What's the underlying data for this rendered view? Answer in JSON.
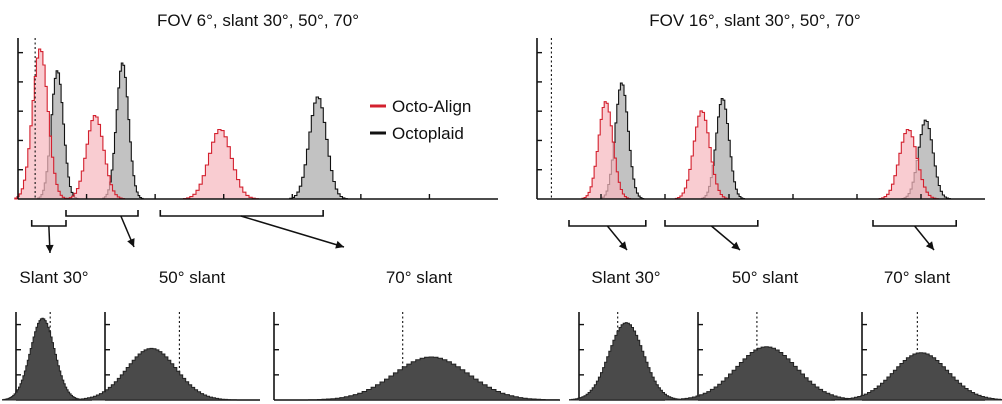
{
  "colors": {
    "red": "#d3202e",
    "red_fill": "#f6b8bf",
    "gray_fill": "#c2c2c2",
    "dark_fill": "#4a4a4a",
    "axis": "#111111"
  },
  "legend": [
    {
      "name": "Octo-Align",
      "color": "#d3202e"
    },
    {
      "name": "Octoplaid",
      "color": "#111111"
    }
  ],
  "panels": {
    "left": {
      "title": "FOV 6°, slant 30°, 50°, 70°"
    },
    "right": {
      "title": "FOV 16°, slant 30°, 50°, 70°"
    }
  },
  "labels": {
    "left": [
      "Slant 30°",
      "50° slant",
      "70° slant"
    ],
    "right": [
      "Slant 30°",
      "50° slant",
      "70° slant"
    ]
  },
  "chart_data": [
    {
      "type": "area",
      "title": "FOV 6°, slant 30°, 50°, 70°",
      "legend_position": "top-right",
      "series": [
        {
          "name": "Octo-Align",
          "distributions": [
            {
              "mean": 1.3,
              "sd": 0.45,
              "height": 0.97
            },
            {
              "mean": 4.5,
              "sd": 0.5,
              "height": 0.54
            },
            {
              "mean": 11.8,
              "sd": 0.65,
              "height": 0.45
            }
          ]
        },
        {
          "name": "Octoplaid",
          "distributions": [
            {
              "mean": 2.3,
              "sd": 0.35,
              "height": 0.83
            },
            {
              "mean": 6.1,
              "sd": 0.35,
              "height": 0.88
            },
            {
              "mean": 17.5,
              "sd": 0.5,
              "height": 0.66
            }
          ]
        }
      ]
    },
    {
      "type": "area",
      "title": "FOV 16°, slant 30°, 50°, 70°",
      "series": [
        {
          "name": "Octo-Align",
          "distributions": [
            {
              "mean": 4.3,
              "sd": 0.45,
              "height": 0.63
            },
            {
              "mean": 10.3,
              "sd": 0.5,
              "height": 0.57
            },
            {
              "mean": 23.2,
              "sd": 0.55,
              "height": 0.45
            }
          ]
        },
        {
          "name": "Octoplaid",
          "distributions": [
            {
              "mean": 5.3,
              "sd": 0.4,
              "height": 0.75
            },
            {
              "mean": 11.6,
              "sd": 0.4,
              "height": 0.65
            },
            {
              "mean": 24.3,
              "sd": 0.45,
              "height": 0.51
            }
          ]
        }
      ]
    },
    {
      "type": "area",
      "title": "Slant 30°",
      "distributions": [
        {
          "mean": 0.35,
          "sd": 0.16,
          "height": 0.95
        }
      ],
      "reference": 0
    },
    {
      "type": "area",
      "title": "50° slant",
      "distributions": [
        {
          "mean": 0.3,
          "sd": 0.16,
          "height": 0.6
        }
      ],
      "reference": 0
    },
    {
      "type": "area",
      "title": "70° slant",
      "distributions": [
        {
          "mean": 0.55,
          "sd": 0.13,
          "height": 0.5
        }
      ],
      "reference": 0
    },
    {
      "type": "area",
      "title": "Slant 30°",
      "distributions": [
        {
          "mean": 0.55,
          "sd": 0.2,
          "height": 0.9
        }
      ],
      "reference": 0
    },
    {
      "type": "area",
      "title": "50° slant",
      "distributions": [
        {
          "mean": 0.5,
          "sd": 0.22,
          "height": 0.62
        }
      ],
      "reference": 0
    },
    {
      "type": "area",
      "title": "70° slant",
      "distributions": [
        {
          "mean": 0.48,
          "sd": 0.22,
          "height": 0.55
        }
      ],
      "reference": 0
    }
  ]
}
